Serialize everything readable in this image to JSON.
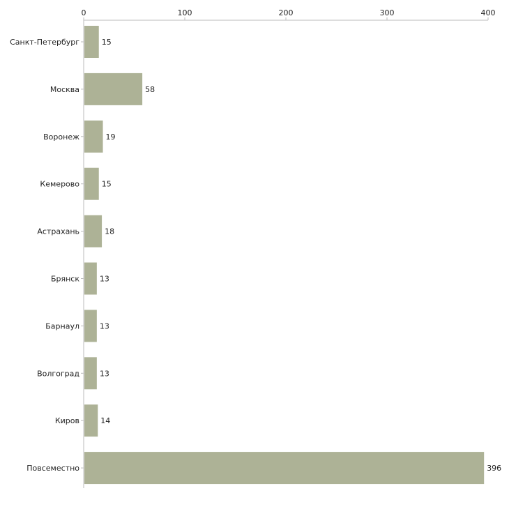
{
  "chart_data": {
    "type": "bar",
    "orientation": "horizontal",
    "title": "",
    "xlabel": "",
    "ylabel": "",
    "xlim": [
      0,
      400
    ],
    "ticks": [
      0,
      100,
      200,
      300,
      400
    ],
    "grid": false,
    "categories": [
      "Санкт-Петербург",
      "Москва",
      "Воронеж",
      "Кемерово",
      "Астрахань",
      "Брянск",
      "Барнаул",
      "Волгоград",
      "Киров",
      "Повсеместно"
    ],
    "values": [
      15,
      58,
      19,
      15,
      18,
      13,
      13,
      13,
      14,
      396
    ],
    "bar_color": "#adb296",
    "axis_color": "#bbbbbb"
  }
}
